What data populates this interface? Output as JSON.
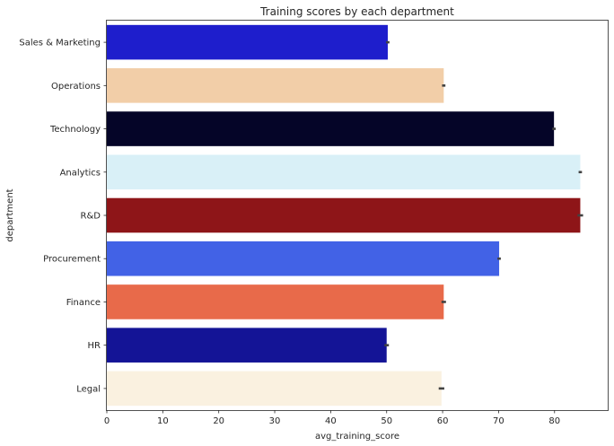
{
  "chart_data": {
    "type": "bar",
    "orientation": "horizontal",
    "title": "Training scores by each department",
    "xlabel": "avg_training_score",
    "ylabel": "department",
    "xlim": [
      0,
      89.5
    ],
    "xticks": [
      0,
      10,
      20,
      30,
      40,
      50,
      60,
      70,
      80
    ],
    "grid": false,
    "categories": [
      "Sales & Marketing",
      "Operations",
      "Technology",
      "Analytics",
      "R&D",
      "Procurement",
      "Finance",
      "HR",
      "Legal"
    ],
    "values": [
      50.2,
      60.2,
      79.9,
      84.6,
      84.6,
      70.1,
      60.2,
      50.0,
      59.8
    ],
    "error": [
      0.3,
      0.3,
      0.3,
      0.3,
      0.5,
      0.3,
      0.4,
      0.4,
      0.5
    ],
    "colors": [
      "#1e1ecc",
      "#f2cea8",
      "#050528",
      "#d9f0f7",
      "#8e1518",
      "#4262e6",
      "#e86a4a",
      "#141496",
      "#faf1e0"
    ]
  }
}
